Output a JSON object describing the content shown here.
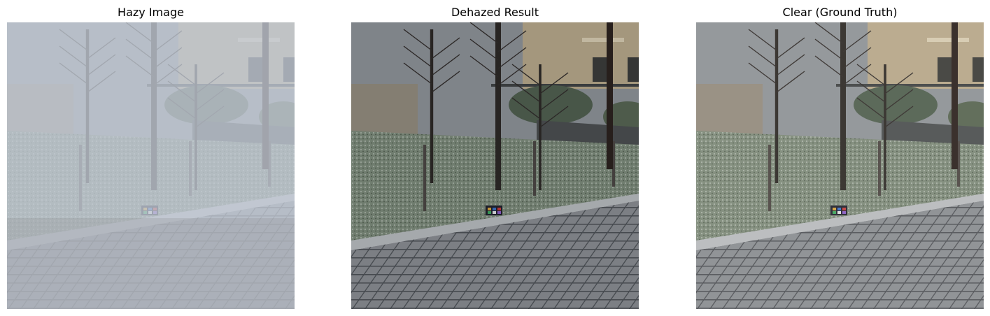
{
  "panels": [
    {
      "title": "Hazy Image",
      "variant": "hazy"
    },
    {
      "title": "Dehazed Result",
      "variant": "dehazed"
    },
    {
      "title": "Clear (Ground Truth)",
      "variant": "clear"
    }
  ],
  "colors": {
    "background": "#ffffff",
    "pavement": "#8a8d90",
    "grass": "#7d8a78",
    "building": "#b8a888",
    "haze": "#c3cad6"
  }
}
